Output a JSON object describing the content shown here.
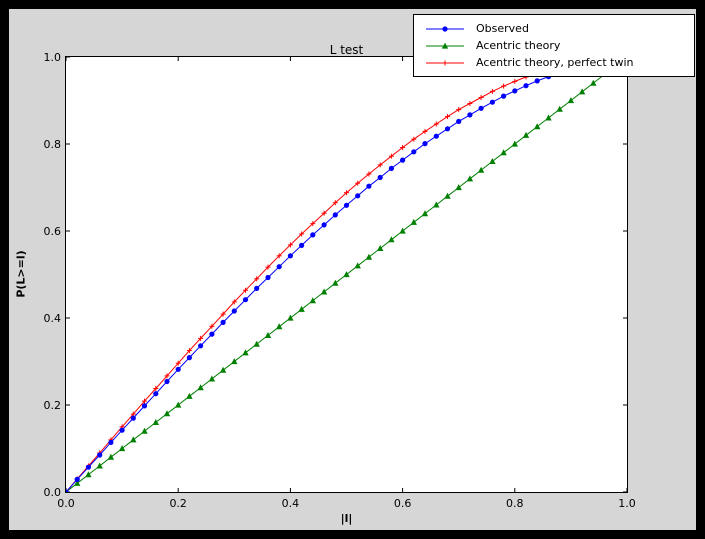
{
  "colors": {
    "window_background": "#000000",
    "figure_background": "#d6d6d6",
    "plot_background": "#ffffff",
    "axis_color": "#000000"
  },
  "chart_data": {
    "type": "line",
    "title": "L test",
    "xlabel": "|l|",
    "ylabel": "P(L>=l)",
    "xlim": [
      0,
      1
    ],
    "ylim": [
      0,
      1
    ],
    "grid": false,
    "legend_position": "upper right",
    "xticks": {
      "values": [
        0,
        0.2,
        0.4,
        0.6,
        0.8,
        1.0
      ],
      "labels": [
        "0.0",
        "0.2",
        "0.4",
        "0.6",
        "0.8",
        "1.0"
      ]
    },
    "yticks": {
      "values": [
        0,
        0.2,
        0.4,
        0.6,
        0.8,
        1.0
      ],
      "labels": [
        "0.0",
        "0.2",
        "0.4",
        "0.6",
        "0.8",
        "1.0"
      ]
    },
    "series": [
      {
        "name": "Observed",
        "color": "#0000ff",
        "marker": "circle",
        "x": [
          0,
          0.02,
          0.04,
          0.06,
          0.08,
          0.1,
          0.12,
          0.14,
          0.16,
          0.18,
          0.2,
          0.22,
          0.24,
          0.26,
          0.28,
          0.3,
          0.32,
          0.34,
          0.36,
          0.38,
          0.4,
          0.42,
          0.44,
          0.46,
          0.48,
          0.5,
          0.52,
          0.54,
          0.56,
          0.58,
          0.6,
          0.62,
          0.64,
          0.66,
          0.68,
          0.7,
          0.72,
          0.74,
          0.76,
          0.78,
          0.8,
          0.82,
          0.84,
          0.86
        ],
        "y": [
          0,
          0.029,
          0.057,
          0.085,
          0.114,
          0.142,
          0.17,
          0.198,
          0.226,
          0.254,
          0.282,
          0.309,
          0.336,
          0.363,
          0.39,
          0.416,
          0.442,
          0.468,
          0.493,
          0.518,
          0.543,
          0.567,
          0.591,
          0.614,
          0.637,
          0.659,
          0.681,
          0.703,
          0.723,
          0.744,
          0.763,
          0.782,
          0.801,
          0.818,
          0.835,
          0.852,
          0.867,
          0.882,
          0.896,
          0.91,
          0.922,
          0.934,
          0.945,
          0.955
        ]
      },
      {
        "name": "Acentric theory",
        "color": "#008000",
        "marker": "triangle",
        "x": [
          0,
          0.02,
          0.04,
          0.06,
          0.08,
          0.1,
          0.12,
          0.14,
          0.16,
          0.18,
          0.2,
          0.22,
          0.24,
          0.26,
          0.28,
          0.3,
          0.32,
          0.34,
          0.36,
          0.38,
          0.4,
          0.42,
          0.44,
          0.46,
          0.48,
          0.5,
          0.52,
          0.54,
          0.56,
          0.58,
          0.6,
          0.62,
          0.64,
          0.66,
          0.68,
          0.7,
          0.72,
          0.74,
          0.76,
          0.78,
          0.8,
          0.82,
          0.84,
          0.86,
          0.88,
          0.9,
          0.92,
          0.94,
          0.96,
          0.98,
          1.0
        ],
        "y": [
          0,
          0.02,
          0.04,
          0.06,
          0.08,
          0.1,
          0.12,
          0.14,
          0.16,
          0.18,
          0.2,
          0.22,
          0.24,
          0.26,
          0.28,
          0.3,
          0.32,
          0.34,
          0.36,
          0.38,
          0.4,
          0.42,
          0.44,
          0.46,
          0.48,
          0.5,
          0.52,
          0.54,
          0.56,
          0.58,
          0.6,
          0.62,
          0.64,
          0.66,
          0.68,
          0.7,
          0.72,
          0.74,
          0.76,
          0.78,
          0.8,
          0.82,
          0.84,
          0.86,
          0.88,
          0.9,
          0.92,
          0.94,
          0.96,
          0.98,
          1.0
        ]
      },
      {
        "name": "Acentric theory, perfect twin",
        "color": "#ff0000",
        "marker": "plus",
        "x": [
          0,
          0.02,
          0.04,
          0.06,
          0.08,
          0.1,
          0.12,
          0.14,
          0.16,
          0.18,
          0.2,
          0.22,
          0.24,
          0.26,
          0.28,
          0.3,
          0.32,
          0.34,
          0.36,
          0.38,
          0.4,
          0.42,
          0.44,
          0.46,
          0.48,
          0.5,
          0.52,
          0.54,
          0.56,
          0.58,
          0.6,
          0.62,
          0.64,
          0.66,
          0.68,
          0.7,
          0.72,
          0.74,
          0.76,
          0.78,
          0.8,
          0.82,
          0.84,
          0.86,
          0.88,
          0.9,
          0.92,
          0.94,
          0.96,
          0.98,
          1.0
        ],
        "y": [
          0,
          0.03,
          0.06,
          0.09,
          0.12,
          0.15,
          0.179,
          0.209,
          0.238,
          0.267,
          0.296,
          0.325,
          0.353,
          0.381,
          0.409,
          0.437,
          0.464,
          0.49,
          0.517,
          0.543,
          0.568,
          0.593,
          0.617,
          0.641,
          0.665,
          0.688,
          0.71,
          0.731,
          0.752,
          0.772,
          0.792,
          0.811,
          0.829,
          0.846,
          0.863,
          0.879,
          0.893,
          0.907,
          0.921,
          0.933,
          0.944,
          0.954,
          0.964,
          0.972,
          0.979,
          0.986,
          0.991,
          0.995,
          0.998,
          0.999,
          1.0
        ]
      }
    ]
  }
}
